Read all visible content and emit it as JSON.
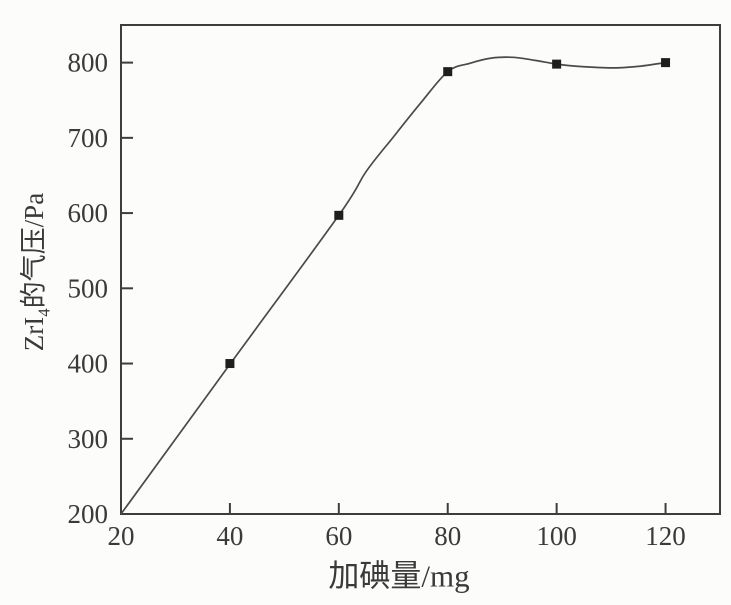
{
  "chart_data": {
    "type": "line",
    "title": "",
    "xlabel": "加碘量/mg",
    "ylabel": "ZrI4的气压/Pa",
    "ylabel_parts": {
      "prefix": "ZrI",
      "sub": "4",
      "suffix": "的气压/Pa"
    },
    "xlim": [
      20,
      130
    ],
    "ylim": [
      200,
      850
    ],
    "x_ticks": [
      20,
      40,
      60,
      80,
      100,
      120
    ],
    "y_ticks": [
      200,
      300,
      400,
      500,
      600,
      700,
      800
    ],
    "grid": false,
    "legend": "none",
    "marker": "filled-square",
    "points": [
      [
        40,
        400
      ],
      [
        60,
        597
      ],
      [
        80,
        788
      ],
      [
        100,
        798
      ],
      [
        120,
        800
      ]
    ],
    "curve_trace": [
      [
        20,
        200
      ],
      [
        40,
        399
      ],
      [
        60,
        597
      ],
      [
        65,
        655
      ],
      [
        70,
        701
      ],
      [
        75,
        746
      ],
      [
        80,
        788
      ],
      [
        84,
        799
      ],
      [
        88,
        806
      ],
      [
        92,
        807
      ],
      [
        96,
        803
      ],
      [
        100,
        798
      ],
      [
        104,
        795
      ],
      [
        110,
        793
      ],
      [
        115,
        795
      ],
      [
        120,
        800
      ]
    ],
    "colors": {
      "background": "#fcfcfa",
      "axis": "#3d3d3d",
      "line": "#4a4a4a",
      "marker": "#1e1e1e",
      "text": "#3a3a3a"
    }
  }
}
